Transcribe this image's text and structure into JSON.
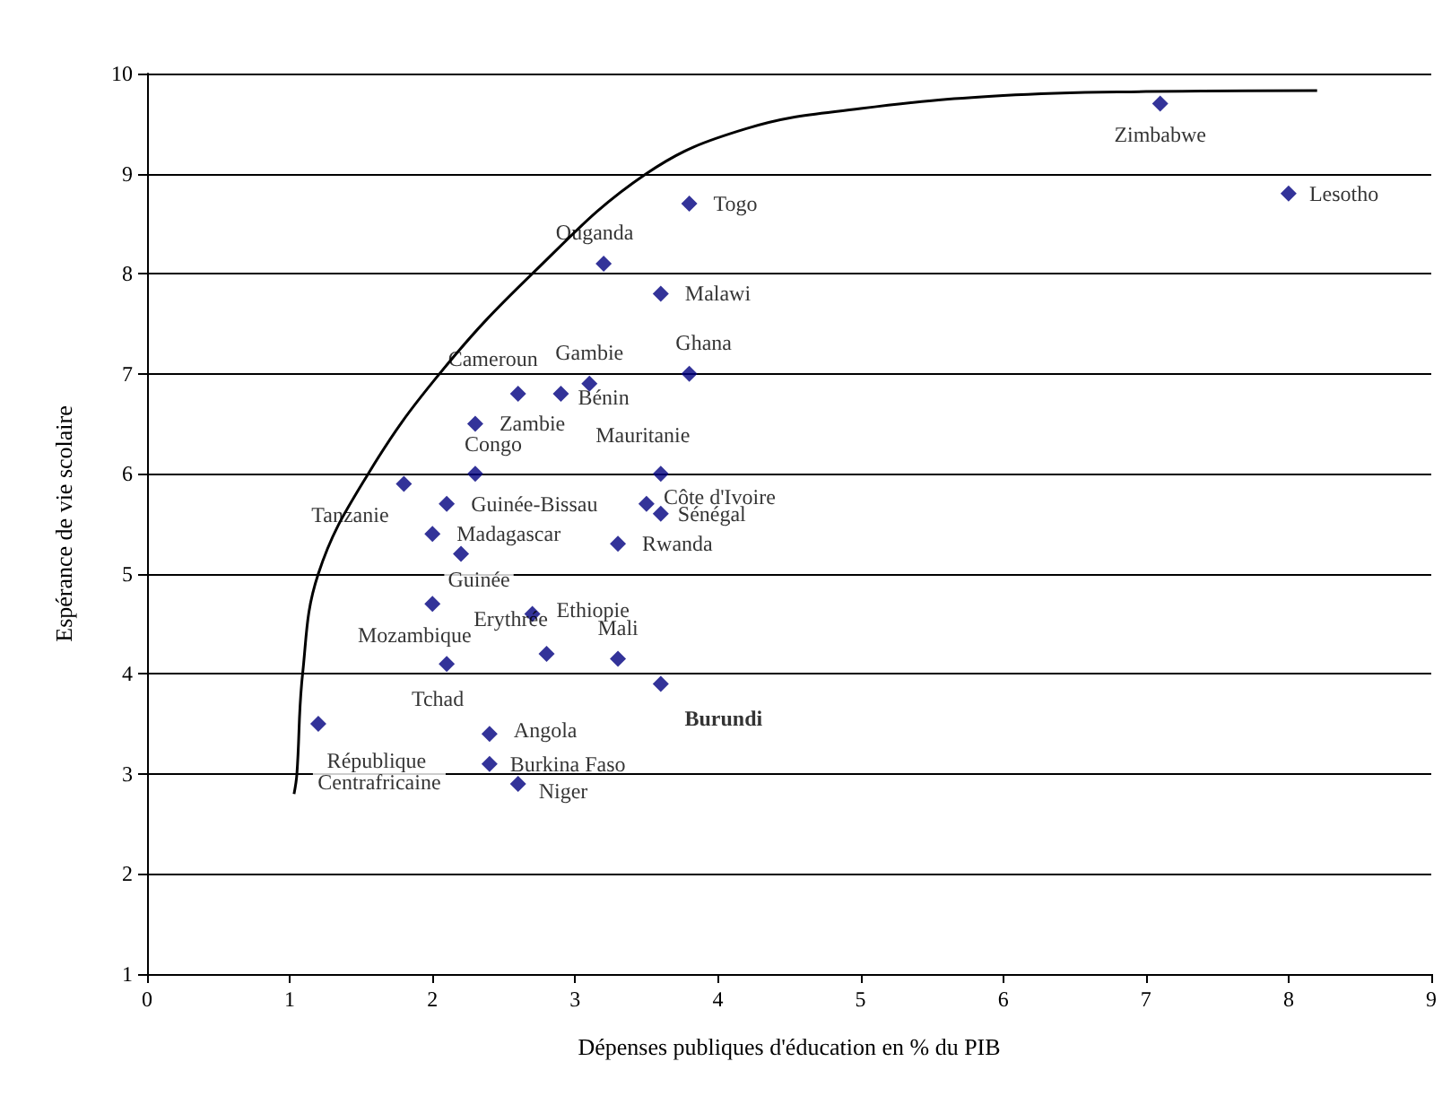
{
  "chart_data": {
    "type": "scatter",
    "xlabel": "Dépenses publiques d'éducation en % du PIB",
    "ylabel": "Espérance de vie scolaire",
    "xlim": [
      0,
      9
    ],
    "xticks": [
      0,
      1,
      2,
      3,
      4,
      5,
      6,
      7,
      8,
      9
    ],
    "ylim": [
      1,
      10
    ],
    "yticks": [
      1,
      2,
      3,
      4,
      5,
      6,
      7,
      8,
      9,
      10
    ],
    "grid": "y",
    "marker": "diamond",
    "series": [
      {
        "color": "#000080",
        "x": [
          7.1,
          8.0,
          3.8,
          3.2,
          3.6,
          3.8,
          3.1,
          2.9,
          2.6,
          2.3,
          2.3,
          3.6,
          1.8,
          2.1,
          3.5,
          3.6,
          2.0,
          2.2,
          3.3,
          2.0,
          2.7,
          2.8,
          3.3,
          2.1,
          3.6,
          1.2,
          2.4,
          2.4,
          2.6
        ],
        "values": [
          9.7,
          8.8,
          8.7,
          8.1,
          7.8,
          7.0,
          6.9,
          6.8,
          6.8,
          6.5,
          6.0,
          6.0,
          5.9,
          5.7,
          5.7,
          5.6,
          5.4,
          5.2,
          5.3,
          4.7,
          4.6,
          4.2,
          4.15,
          4.1,
          3.9,
          3.5,
          3.4,
          3.1,
          2.9
        ],
        "value_labels": [
          "Zimbabwe",
          "Lesotho",
          "Togo",
          "Ouganda",
          "Malawi",
          "Ghana",
          "Gambie",
          "Bénin",
          "Cameroun",
          "Zambie",
          "Congo",
          "Mauritanie",
          "Tanzanie",
          "Guinée-Bissau",
          "Côte d'Ivoire",
          "Sénégal",
          "Madagascar",
          "Guinée",
          "Rwanda",
          "Mozambique",
          "Ethiopie",
          "Erythrée",
          "Mali",
          "Tchad",
          "Burundi",
          "République Centrafricaine",
          "Angola",
          "Burkina Faso",
          "Niger"
        ]
      },
      {
        "type": "line",
        "color": "#000000",
        "line_style": "solid",
        "marker": "none",
        "x": [
          1.03,
          1.05,
          1.09,
          1.2,
          1.55,
          2.05,
          2.7,
          3.5,
          4.2,
          5,
          6,
          7,
          8.2
        ],
        "values": [
          2.8,
          3.0,
          4.0,
          5.0,
          6.0,
          7.0,
          8.0,
          9.0,
          9.45,
          9.65,
          9.78,
          9.82,
          9.83
        ]
      }
    ]
  }
}
